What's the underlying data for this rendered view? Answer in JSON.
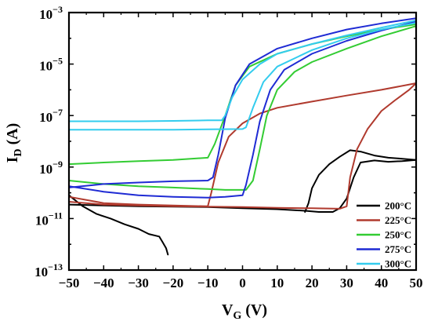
{
  "chart_data": {
    "type": "line",
    "xlabel_main": "V",
    "xlabel_sub": "G",
    "xlabel_unit": " (V)",
    "ylabel_main": "I",
    "ylabel_sub": "D",
    "ylabel_unit": " (A)",
    "xlim": [
      -50,
      50
    ],
    "ylim": [
      1e-13,
      0.001
    ],
    "y_scale": "log",
    "x_ticks": [
      "−50",
      "−40",
      "−30",
      "−20",
      "−10",
      "0",
      "10",
      "20",
      "30",
      "40",
      "50"
    ],
    "x_tick_values": [
      -50,
      -40,
      -30,
      -20,
      -10,
      0,
      10,
      20,
      30,
      40,
      50
    ],
    "y_ticks": [
      {
        "value": 1e-13,
        "base": "10",
        "exp": "−13"
      },
      {
        "value": 1e-11,
        "base": "10",
        "exp": "−11"
      },
      {
        "value": 1e-09,
        "base": "10",
        "exp": "−9"
      },
      {
        "value": 1e-07,
        "base": "10",
        "exp": "−7"
      },
      {
        "value": 1e-05,
        "base": "10",
        "exp": "−5"
      },
      {
        "value": 0.001,
        "base": "10",
        "exp": "−3"
      }
    ],
    "legend_position": "bottom-right",
    "series": [
      {
        "name": "200°C",
        "color": "#000000",
        "points": [
          [
            -50,
            8e-11
          ],
          [
            -46,
            3e-11
          ],
          [
            -42,
            1.5e-11
          ],
          [
            -38,
            1e-11
          ],
          [
            -34,
            6e-12
          ],
          [
            -30,
            4e-12
          ],
          [
            -27,
            2.5e-12
          ],
          [
            -24,
            2e-12
          ],
          [
            -23,
            1.2e-12
          ],
          [
            -22,
            7e-13
          ],
          [
            -21.5,
            4e-13
          ]
        ]
      },
      {
        "name": "200°C",
        "color": "#000000",
        "points": [
          [
            -50,
            3.5e-11
          ],
          [
            -30,
            3e-11
          ],
          [
            -10,
            2.8e-11
          ],
          [
            0,
            2.5e-11
          ],
          [
            10,
            2.3e-11
          ],
          [
            18,
            2e-11
          ],
          [
            22,
            1.8e-11
          ],
          [
            26,
            1.8e-11
          ],
          [
            28,
            2.5e-11
          ],
          [
            30,
            6e-11
          ],
          [
            32,
            4e-10
          ],
          [
            34,
            1.5e-09
          ],
          [
            38,
            1.8e-09
          ],
          [
            42,
            1.6e-09
          ],
          [
            46,
            1.7e-09
          ],
          [
            50,
            1.9e-09
          ]
        ]
      },
      {
        "name": "200°C",
        "color": "#000000",
        "points": [
          [
            18,
            1.8e-11
          ],
          [
            19,
            4e-11
          ],
          [
            20,
            1.5e-10
          ],
          [
            22,
            5e-10
          ],
          [
            25,
            1.3e-09
          ],
          [
            28,
            2.5e-09
          ],
          [
            31,
            4.5e-09
          ],
          [
            34,
            4e-09
          ],
          [
            38,
            2.8e-09
          ],
          [
            42,
            2.3e-09
          ],
          [
            46,
            2.1e-09
          ],
          [
            50,
            1.9e-09
          ]
        ]
      },
      {
        "name": "225°C",
        "color": "#b03a2e",
        "points": [
          [
            -50,
            4.5e-11
          ],
          [
            -40,
            3.5e-11
          ],
          [
            -30,
            3.2e-11
          ],
          [
            -20,
            3e-11
          ],
          [
            -10,
            2.9e-11
          ],
          [
            0,
            2.8e-11
          ],
          [
            10,
            2.6e-11
          ],
          [
            20,
            2.5e-11
          ],
          [
            28,
            2.4e-11
          ],
          [
            30,
            3e-11
          ],
          [
            31,
            4e-10
          ],
          [
            33,
            5e-09
          ],
          [
            36,
            3e-08
          ],
          [
            40,
            1.5e-07
          ],
          [
            44,
            4e-07
          ],
          [
            48,
            1e-06
          ],
          [
            50,
            1.8e-06
          ]
        ]
      },
      {
        "name": "225°C",
        "color": "#b03a2e",
        "points": [
          [
            -50,
            7e-11
          ],
          [
            -40,
            4e-11
          ],
          [
            -30,
            3.5e-11
          ],
          [
            -20,
            3.2e-11
          ],
          [
            -10,
            3e-11
          ],
          [
            -9,
            1e-10
          ],
          [
            -7,
            1.5e-09
          ],
          [
            -4,
            1.5e-08
          ],
          [
            0,
            5e-08
          ],
          [
            5,
            1.2e-07
          ],
          [
            10,
            2e-07
          ],
          [
            20,
            3.5e-07
          ],
          [
            30,
            6e-07
          ],
          [
            40,
            1e-06
          ],
          [
            50,
            1.8e-06
          ]
        ]
      },
      {
        "name": "250°C",
        "color": "#33cc33",
        "points": [
          [
            -50,
            1.3e-09
          ],
          [
            -40,
            1.5e-09
          ],
          [
            -30,
            1.7e-09
          ],
          [
            -20,
            1.9e-09
          ],
          [
            -10,
            2.3e-09
          ],
          [
            -8,
            8e-09
          ],
          [
            -5,
            1e-07
          ],
          [
            -2,
            1.5e-06
          ],
          [
            2,
            8e-06
          ],
          [
            10,
            2.5e-05
          ],
          [
            20,
            6e-05
          ],
          [
            30,
            0.00012
          ],
          [
            40,
            0.00022
          ],
          [
            50,
            0.00035
          ]
        ]
      },
      {
        "name": "250°C",
        "color": "#33cc33",
        "points": [
          [
            -50,
            3e-10
          ],
          [
            -40,
            2.2e-10
          ],
          [
            -30,
            1.8e-10
          ],
          [
            -20,
            1.6e-10
          ],
          [
            -10,
            1.4e-10
          ],
          [
            -5,
            1.3e-10
          ],
          [
            1,
            1.3e-10
          ],
          [
            3,
            3e-10
          ],
          [
            5,
            5e-09
          ],
          [
            7,
            1e-07
          ],
          [
            10,
            1e-06
          ],
          [
            15,
            5e-06
          ],
          [
            20,
            1.2e-05
          ],
          [
            30,
            4e-05
          ],
          [
            40,
            0.00012
          ],
          [
            50,
            0.0003
          ]
        ]
      },
      {
        "name": "275°C",
        "color": "#1f2bd4",
        "points": [
          [
            -50,
            1.8e-10
          ],
          [
            -40,
            1.1e-10
          ],
          [
            -30,
            8e-11
          ],
          [
            -20,
            7e-11
          ],
          [
            -10,
            6.5e-11
          ],
          [
            -5,
            7e-11
          ],
          [
            0,
            8e-11
          ],
          [
            1,
            2e-10
          ],
          [
            3,
            3e-09
          ],
          [
            5,
            6e-08
          ],
          [
            8,
            1e-06
          ],
          [
            12,
            6e-06
          ],
          [
            20,
            2.5e-05
          ],
          [
            30,
            8e-05
          ],
          [
            40,
            0.0002
          ],
          [
            50,
            0.00045
          ]
        ]
      },
      {
        "name": "275°C",
        "color": "#1f2bd4",
        "points": [
          [
            -50,
            1.6e-10
          ],
          [
            -40,
            2.2e-10
          ],
          [
            -30,
            2.5e-10
          ],
          [
            -20,
            2.8e-10
          ],
          [
            -10,
            3e-10
          ],
          [
            -8.5,
            4e-10
          ],
          [
            -7,
            3e-09
          ],
          [
            -5,
            8e-08
          ],
          [
            -2,
            1.5e-06
          ],
          [
            2,
            1e-05
          ],
          [
            10,
            4e-05
          ],
          [
            20,
            0.0001
          ],
          [
            30,
            0.00022
          ],
          [
            40,
            0.00038
          ],
          [
            50,
            0.0006
          ]
        ]
      },
      {
        "name": "300°C",
        "color": "#33ccee",
        "points": [
          [
            -50,
            6e-08
          ],
          [
            -40,
            6e-08
          ],
          [
            -30,
            6e-08
          ],
          [
            -20,
            6.2e-08
          ],
          [
            -10,
            6.5e-08
          ],
          [
            -6,
            6.5e-08
          ],
          [
            -5,
            1e-07
          ],
          [
            -3,
            5e-07
          ],
          [
            0,
            2.5e-06
          ],
          [
            5,
            1e-05
          ],
          [
            10,
            2.5e-05
          ],
          [
            20,
            6e-05
          ],
          [
            30,
            0.00013
          ],
          [
            40,
            0.00026
          ],
          [
            50,
            0.0005
          ]
        ]
      },
      {
        "name": "300°C",
        "color": "#33ccee",
        "points": [
          [
            -50,
            2.8e-08
          ],
          [
            -40,
            2.8e-08
          ],
          [
            -30,
            2.8e-08
          ],
          [
            -20,
            2.8e-08
          ],
          [
            -10,
            2.9e-08
          ],
          [
            0,
            3e-08
          ],
          [
            1,
            3.5e-08
          ],
          [
            3,
            2e-07
          ],
          [
            6,
            2e-06
          ],
          [
            10,
            8e-06
          ],
          [
            20,
            3.5e-05
          ],
          [
            30,
            0.0001
          ],
          [
            40,
            0.00022
          ],
          [
            50,
            0.0004
          ]
        ]
      }
    ],
    "legend": [
      {
        "label": "200°C",
        "color": "#000000"
      },
      {
        "label": "225°C",
        "color": "#b03a2e"
      },
      {
        "label": "250°C",
        "color": "#33cc33"
      },
      {
        "label": "275°C",
        "color": "#1f2bd4"
      },
      {
        "label": "300°C",
        "color": "#33ccee"
      }
    ]
  }
}
